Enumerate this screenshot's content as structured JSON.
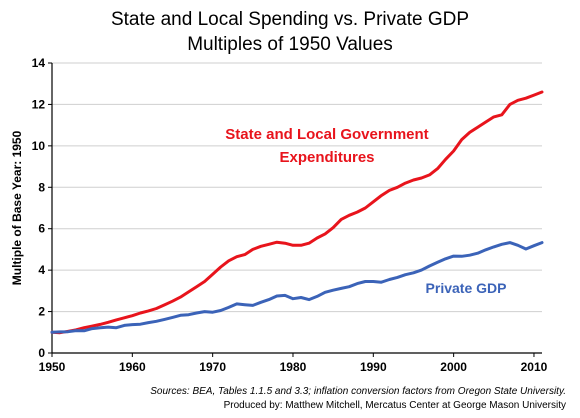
{
  "title_line1": "State and Local Spending vs. Private GDP",
  "title_line2": "Multiples of 1950 Values",
  "source_line1": "Sources: BEA, Tables 1.1.5 and 3.3; inflation conversion factors from Oregon State University.",
  "source_line2": "Produced by: Matthew Mitchell,  Mercatus Center at George Mason University",
  "colors": {
    "state_local": "#e8141c",
    "private_gdp": "#3b63b8"
  },
  "chart_data": {
    "type": "line",
    "ylabel": "Multiple of Base Year: 1950",
    "xlabel": "",
    "xlim": [
      1950,
      2011
    ],
    "ylim": [
      0,
      14
    ],
    "x_ticks": [
      1950,
      1960,
      1970,
      1980,
      1990,
      2000,
      2010
    ],
    "y_ticks": [
      0,
      2,
      4,
      6,
      8,
      10,
      12,
      14
    ],
    "grid": "horizontal",
    "x": [
      1950,
      1951,
      1952,
      1953,
      1954,
      1955,
      1956,
      1957,
      1958,
      1959,
      1960,
      1961,
      1962,
      1963,
      1964,
      1965,
      1966,
      1967,
      1968,
      1969,
      1970,
      1971,
      1972,
      1973,
      1974,
      1975,
      1976,
      1977,
      1978,
      1979,
      1980,
      1981,
      1982,
      1983,
      1984,
      1985,
      1986,
      1987,
      1988,
      1989,
      1990,
      1991,
      1992,
      1993,
      1994,
      1995,
      1996,
      1997,
      1998,
      1999,
      2000,
      2001,
      2002,
      2003,
      2004,
      2005,
      2006,
      2007,
      2008,
      2009,
      2010,
      2011
    ],
    "series": [
      {
        "name": "State and Local Government Expenditures",
        "label_line1": "State and Local Government",
        "label_line2": "Expenditures",
        "values": [
          1.0,
          0.98,
          1.05,
          1.12,
          1.22,
          1.3,
          1.38,
          1.48,
          1.6,
          1.7,
          1.8,
          1.93,
          2.03,
          2.15,
          2.32,
          2.5,
          2.7,
          2.95,
          3.2,
          3.45,
          3.8,
          4.15,
          4.45,
          4.65,
          4.75,
          5.0,
          5.15,
          5.25,
          5.35,
          5.3,
          5.2,
          5.2,
          5.3,
          5.55,
          5.75,
          6.05,
          6.45,
          6.65,
          6.8,
          7.0,
          7.3,
          7.6,
          7.85,
          8.0,
          8.2,
          8.35,
          8.45,
          8.6,
          8.9,
          9.35,
          9.75,
          10.3,
          10.65,
          10.9,
          11.15,
          11.4,
          11.5,
          12.0,
          12.2,
          12.3,
          12.45,
          12.6
        ]
      },
      {
        "name": "Private GDP",
        "label_line1": "Private GDP",
        "values": [
          1.0,
          1.02,
          1.03,
          1.08,
          1.07,
          1.18,
          1.22,
          1.25,
          1.22,
          1.33,
          1.37,
          1.39,
          1.47,
          1.53,
          1.62,
          1.72,
          1.82,
          1.85,
          1.93,
          2.0,
          1.97,
          2.05,
          2.2,
          2.37,
          2.33,
          2.3,
          2.45,
          2.58,
          2.75,
          2.78,
          2.62,
          2.68,
          2.58,
          2.73,
          2.93,
          3.03,
          3.12,
          3.2,
          3.35,
          3.45,
          3.45,
          3.42,
          3.55,
          3.65,
          3.78,
          3.87,
          4.0,
          4.2,
          4.38,
          4.55,
          4.68,
          4.67,
          4.72,
          4.82,
          4.98,
          5.12,
          5.25,
          5.33,
          5.2,
          5.02,
          5.18,
          5.33
        ]
      }
    ]
  }
}
